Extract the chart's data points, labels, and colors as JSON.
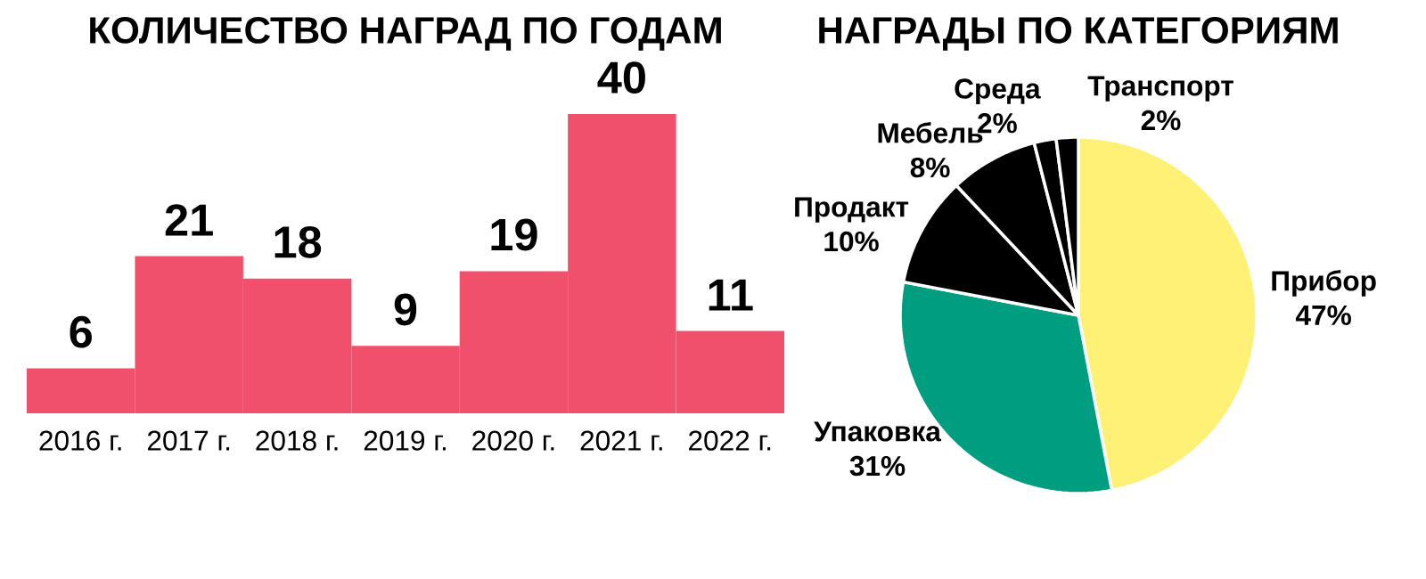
{
  "chart_data": [
    {
      "type": "bar",
      "title": "КОЛИЧЕСТВО НАГРАД ПО ГОДАМ",
      "categories": [
        "2016 г.",
        "2017 г.",
        "2018 г.",
        "2019 г.",
        "2020 г.",
        "2021 г.",
        "2022 г."
      ],
      "values": [
        6,
        21,
        18,
        9,
        19,
        40,
        11
      ],
      "color": "#f0506c",
      "data_labels": true
    },
    {
      "type": "pie",
      "title": "НАГРАДЫ ПО КАТЕГОРИЯМ",
      "categories": [
        "Прибор",
        "Упаковка",
        "Продакт",
        "Мебель",
        "Среда",
        "Транспорт"
      ],
      "values": [
        47,
        31,
        10,
        8,
        2,
        2
      ],
      "value_labels": [
        "47%",
        "31%",
        "10%",
        "8%",
        "2%",
        "2%"
      ],
      "colors": [
        "#fff176",
        "#009e80",
        "#000000",
        "#000000",
        "#000000",
        "#000000"
      ]
    }
  ]
}
